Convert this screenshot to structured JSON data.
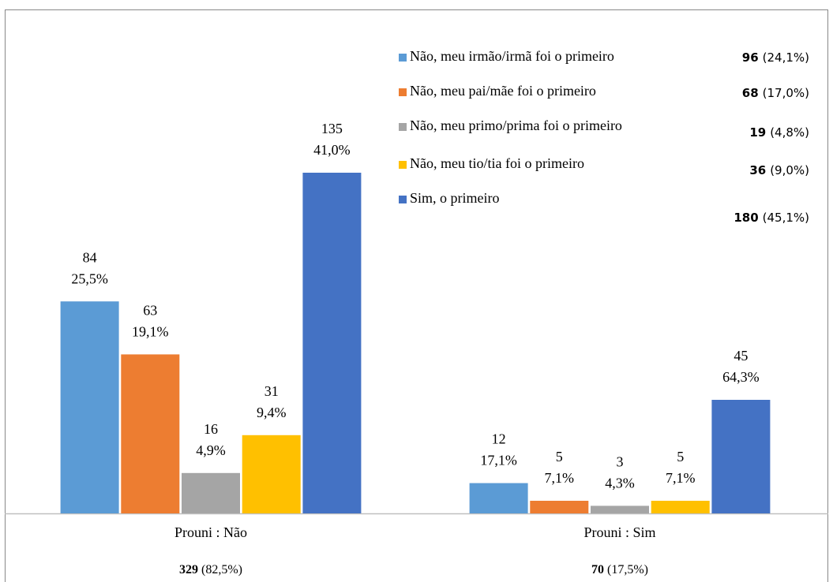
{
  "chart_data": {
    "type": "bar",
    "categories": [
      "Prouni : Não",
      "Prouni : Sim"
    ],
    "category_totals": [
      329,
      70
    ],
    "category_total_labels": [
      "(82,5%)",
      "(17,5%)"
    ],
    "series": [
      {
        "name": "Não, meu irmão/irmã foi o primeiro",
        "color": "#5b9bd5",
        "values": [
          84,
          12
        ],
        "shares": [
          25.5,
          17.1
        ],
        "share_labels": [
          "25,5%",
          "17,1%"
        ],
        "total": 96,
        "total_label": "(24,1%)"
      },
      {
        "name": "Não, meu pai/mãe foi o primeiro",
        "color": "#ed7d31",
        "values": [
          63,
          5
        ],
        "shares": [
          19.1,
          7.1
        ],
        "share_labels": [
          "19,1%",
          "7,1%"
        ],
        "total": 68,
        "total_label": "(17,0%)"
      },
      {
        "name": "Não, meu primo/prima foi o primeiro",
        "color": "#a5a5a5",
        "values": [
          16,
          3
        ],
        "shares": [
          4.9,
          4.3
        ],
        "share_labels": [
          "4,9%",
          "4,3%"
        ],
        "total": 19,
        "total_label": "(4,8%)"
      },
      {
        "name": "Não, meu tio/tia foi o primeiro",
        "color": "#ffc000",
        "values": [
          31,
          5
        ],
        "shares": [
          9.4,
          7.1
        ],
        "share_labels": [
          "9,4%",
          "7,1%"
        ],
        "total": 36,
        "total_label": "(9,0%)"
      },
      {
        "name": "Sim, o primeiro",
        "color": "#4472c4",
        "values": [
          135,
          45
        ],
        "shares": [
          41.0,
          64.3
        ],
        "share_labels": [
          "41,0%",
          "64,3%"
        ],
        "total": 180,
        "total_label": "(45,1%)"
      }
    ],
    "ylim": [
      0,
      200
    ]
  }
}
